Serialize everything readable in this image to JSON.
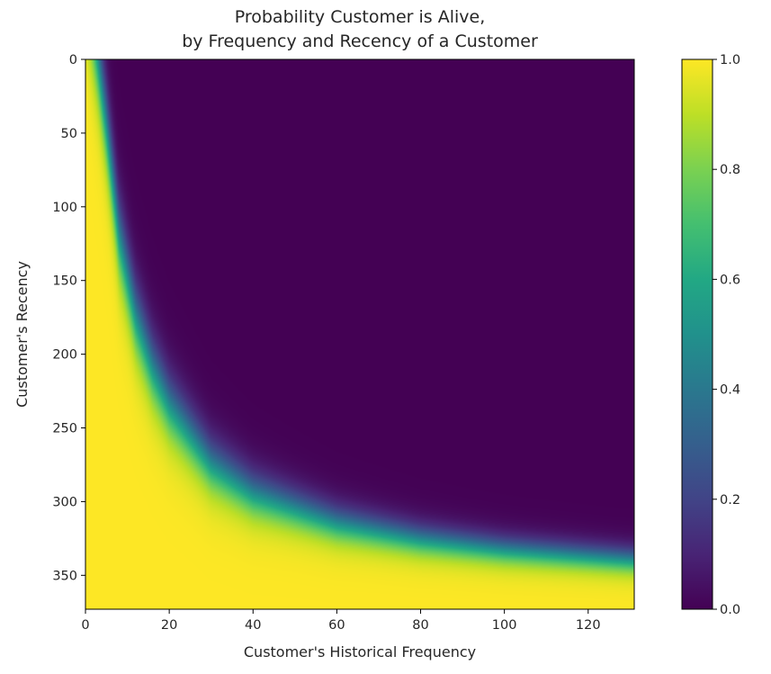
{
  "chart_data": {
    "type": "heatmap",
    "title": [
      "Probability Customer is Alive,",
      "by Frequency and Recency of a Customer"
    ],
    "xlabel": "Customer's Historical Frequency",
    "ylabel": "Customer's Recency",
    "xlim": [
      0,
      131
    ],
    "ylim": [
      0,
      373
    ],
    "y_inverted": true,
    "x_ticks": [
      0,
      20,
      40,
      60,
      80,
      100,
      120
    ],
    "y_ticks": [
      0,
      50,
      100,
      150,
      200,
      250,
      300,
      350
    ],
    "colorbar": {
      "colormap": "viridis",
      "range": [
        0.0,
        1.0
      ],
      "ticks": [
        "0.0",
        "0.2",
        "0.4",
        "0.6",
        "0.8",
        "1.0"
      ]
    },
    "boundary_p50": {
      "frequency": [
        3,
        5,
        8,
        12,
        16,
        20,
        30,
        40,
        60,
        80,
        100,
        131
      ],
      "recency": [
        0,
        45,
        120,
        175,
        210,
        235,
        275,
        295,
        315,
        326,
        333,
        340
      ]
    },
    "grid": false
  }
}
